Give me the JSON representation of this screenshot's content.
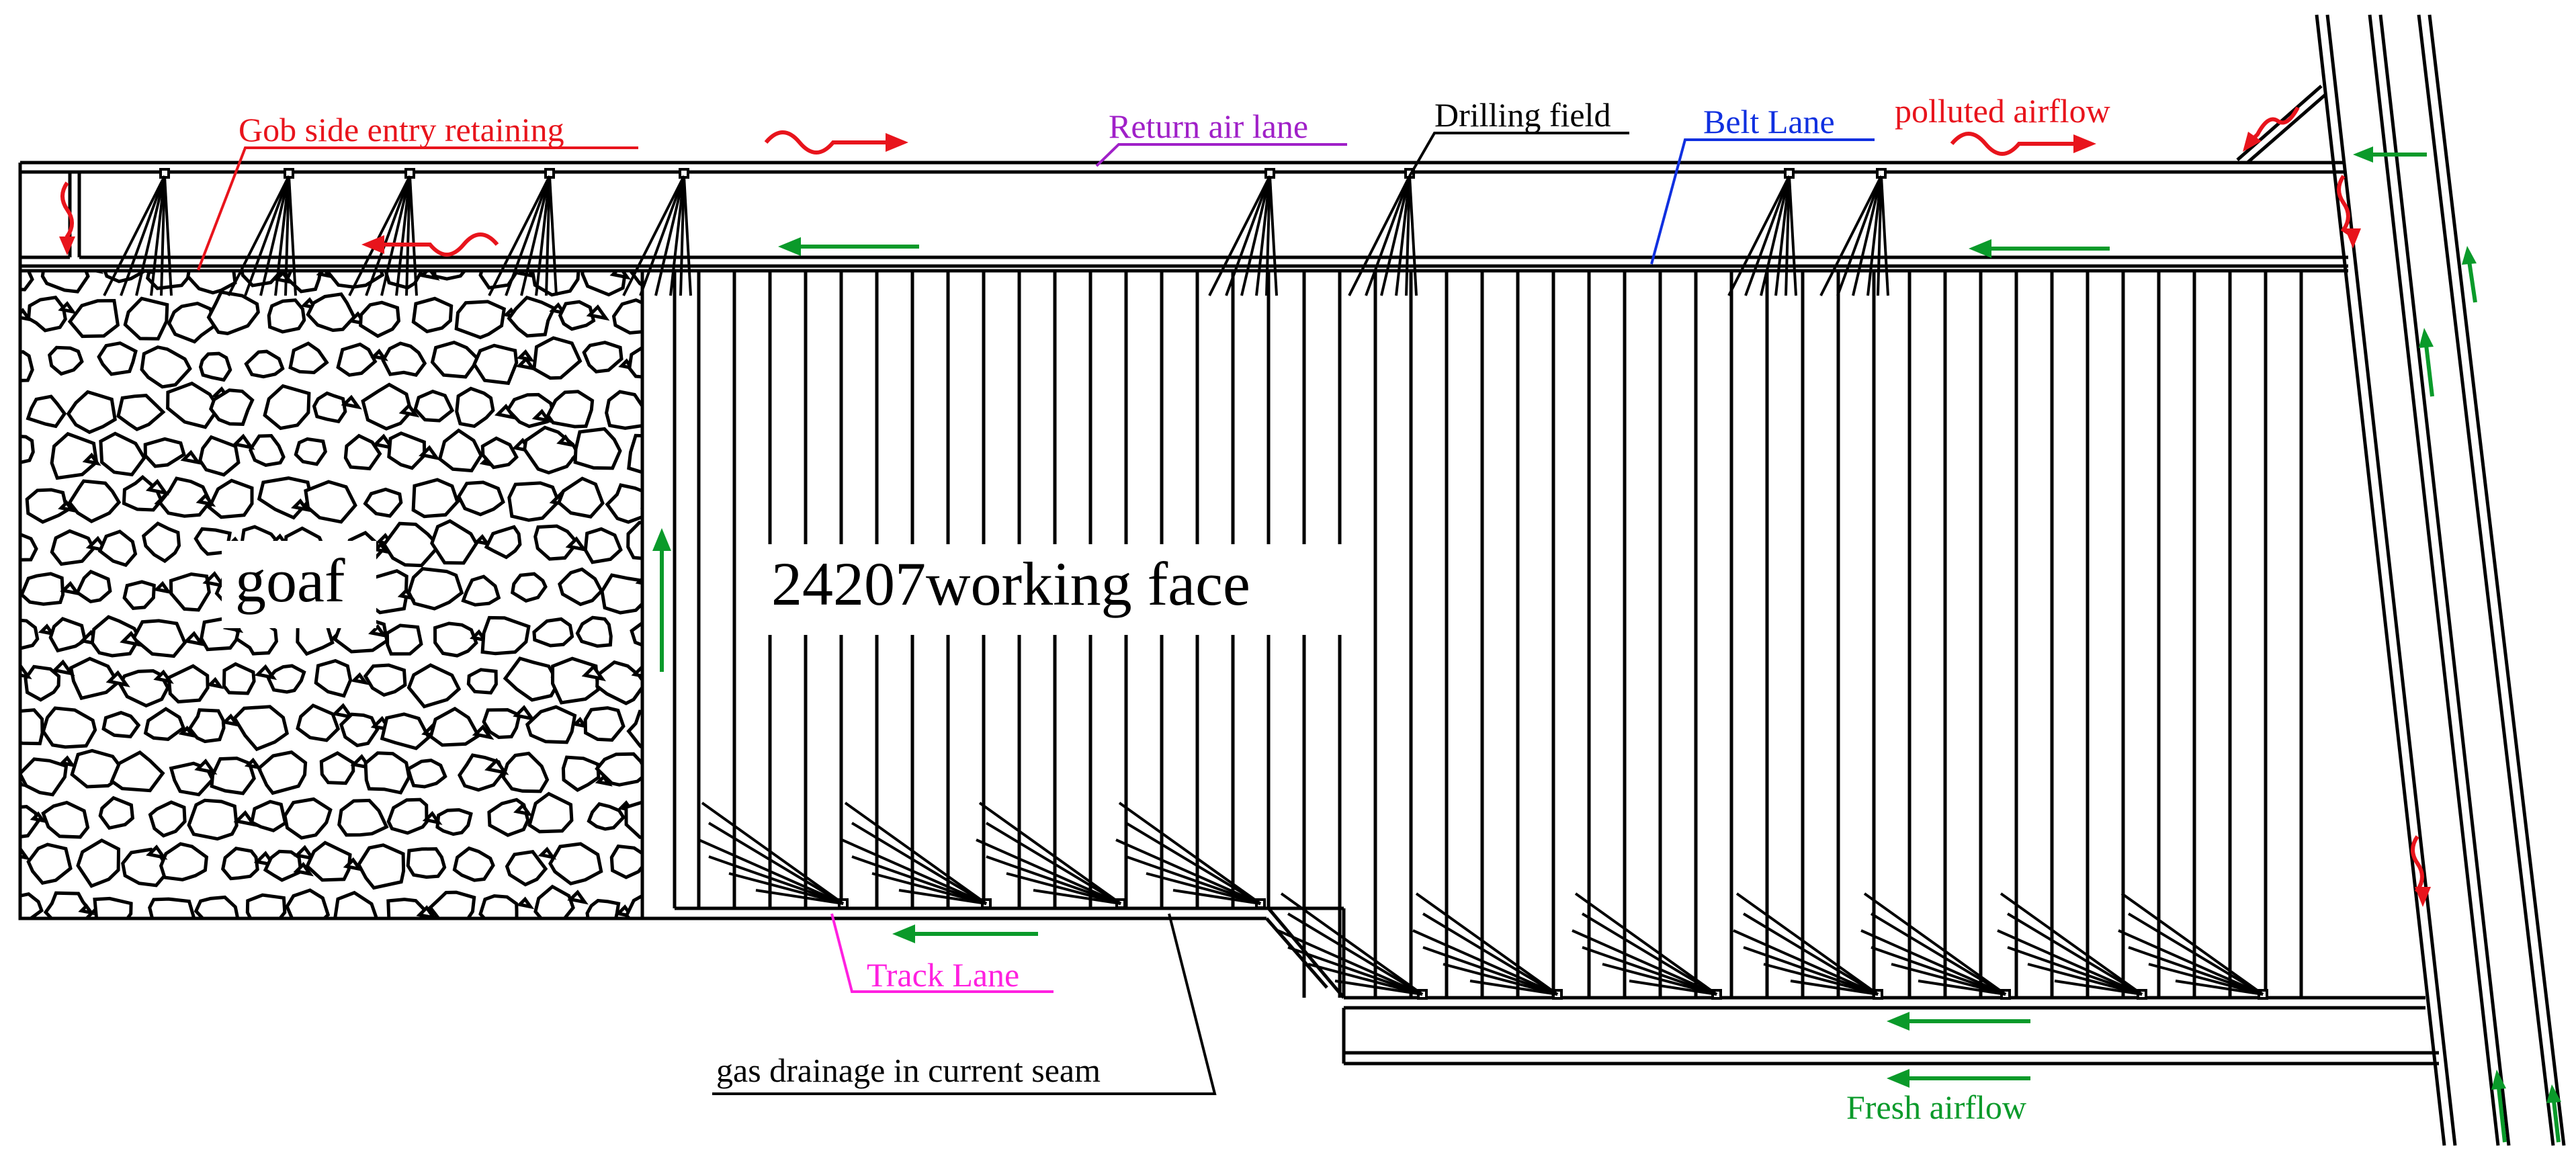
{
  "labels": {
    "gob_side_entry": "Gob side entry retaining",
    "return_air_lane": "Return air lane",
    "drilling_field": "Drilling field",
    "belt_lane": "Belt Lane",
    "polluted_airflow": "polluted airflow",
    "goaf": "goaf",
    "working_face": "24207working face",
    "track_lane": "Track Lane",
    "gas_drainage": "gas drainage in current seam",
    "fresh_airflow": "Fresh airflow"
  },
  "colors": {
    "line": "#000000",
    "polluted": "#e8141c",
    "fresh": "#0a9a2a",
    "return_air_label": "#a020c8",
    "belt_lane_label": "#1030e0",
    "track_lane_label": "#ff20e0",
    "drilling_label": "#000000",
    "gas_label": "#000000"
  }
}
